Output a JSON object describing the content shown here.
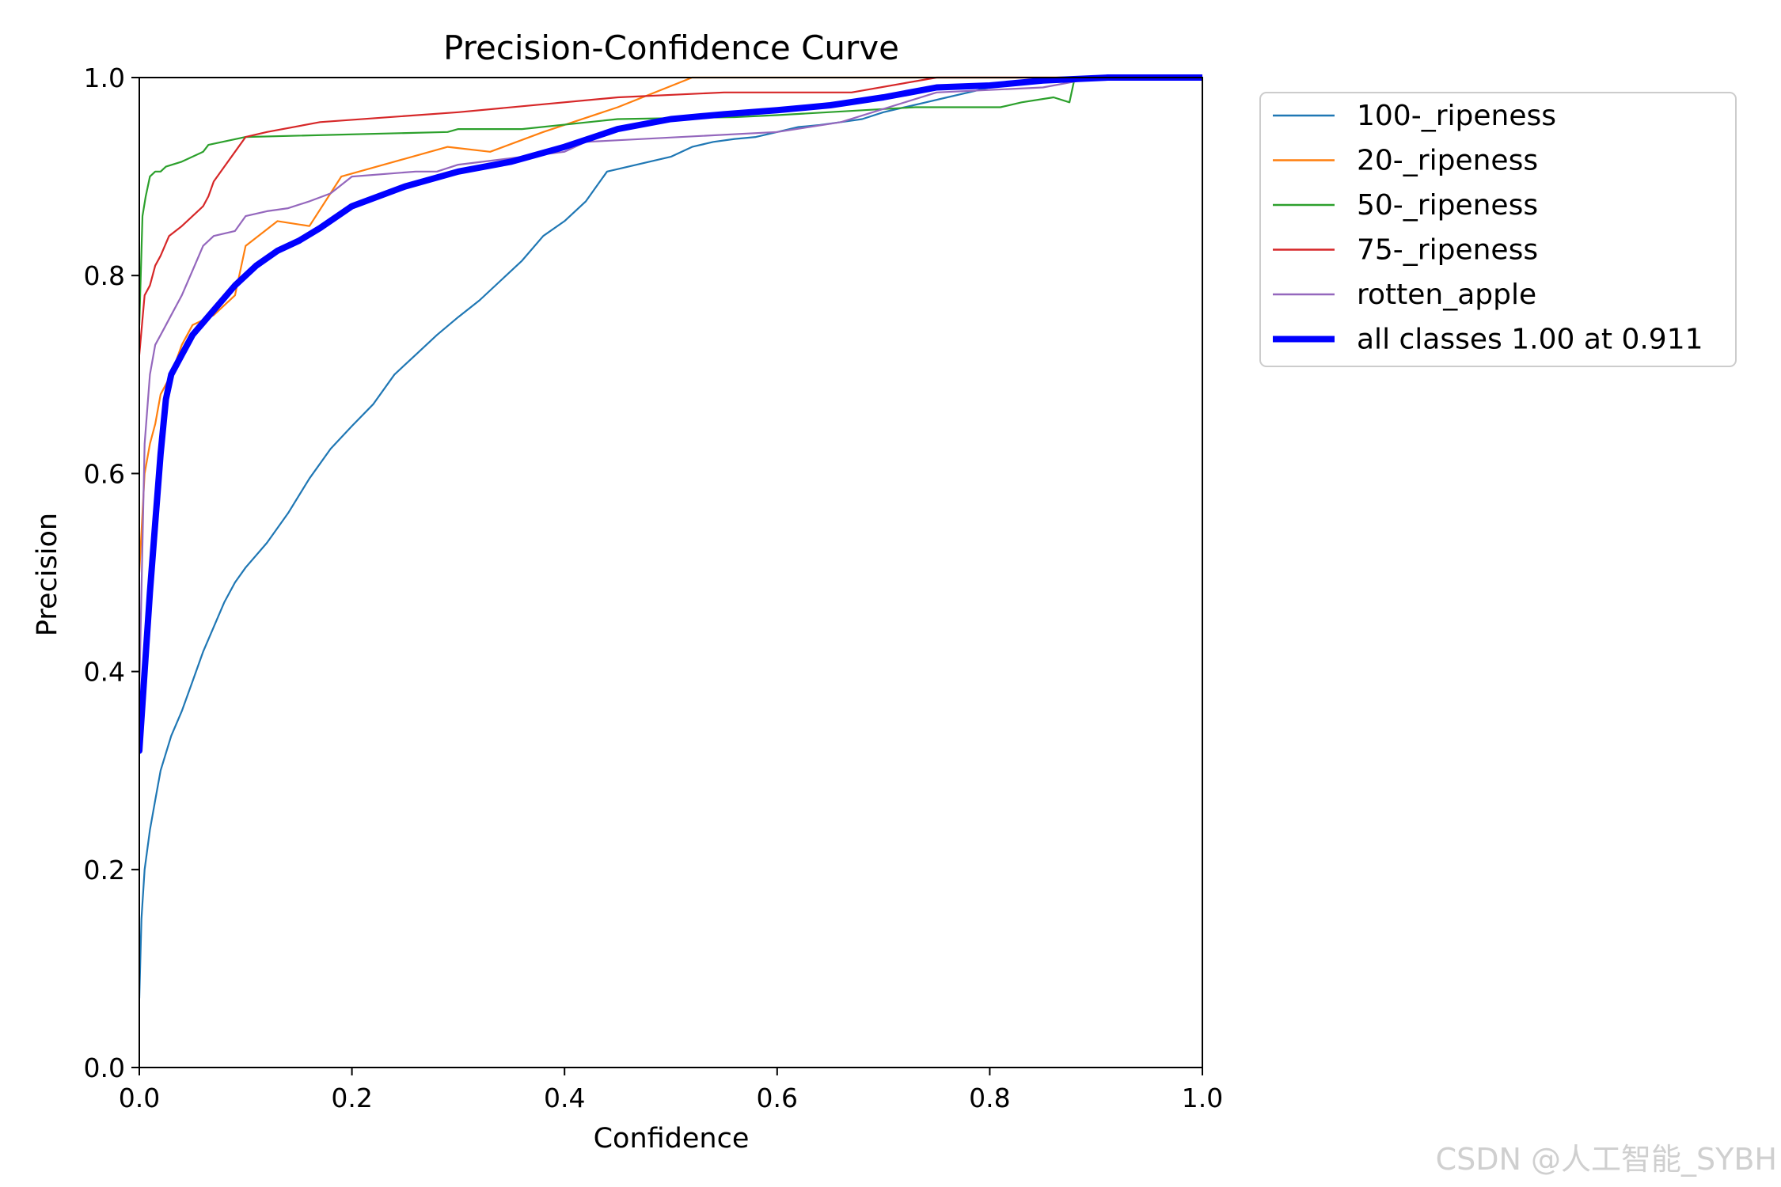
{
  "chart_data": {
    "type": "line",
    "title": "Precision-Confidence Curve",
    "xlabel": "Confidence",
    "ylabel": "Precision",
    "xlim": [
      0,
      1
    ],
    "ylim": [
      0,
      1
    ],
    "xticks": [
      "0.0",
      "0.2",
      "0.4",
      "0.6",
      "0.8",
      "1.0"
    ],
    "yticks": [
      "0.0",
      "0.2",
      "0.4",
      "0.6",
      "0.8",
      "1.0"
    ],
    "grid": false,
    "legend_position": "outside-top-right",
    "series": [
      {
        "name": "100-_ripeness",
        "color": "#1f77b4",
        "width": "thin",
        "points": [
          [
            0,
            0.07
          ],
          [
            0.002,
            0.15
          ],
          [
            0.005,
            0.2
          ],
          [
            0.01,
            0.24
          ],
          [
            0.015,
            0.27
          ],
          [
            0.02,
            0.3
          ],
          [
            0.03,
            0.335
          ],
          [
            0.04,
            0.36
          ],
          [
            0.05,
            0.39
          ],
          [
            0.06,
            0.42
          ],
          [
            0.07,
            0.445
          ],
          [
            0.08,
            0.47
          ],
          [
            0.09,
            0.49
          ],
          [
            0.1,
            0.505
          ],
          [
            0.12,
            0.53
          ],
          [
            0.14,
            0.56
          ],
          [
            0.16,
            0.595
          ],
          [
            0.18,
            0.625
          ],
          [
            0.2,
            0.648
          ],
          [
            0.22,
            0.67
          ],
          [
            0.24,
            0.7
          ],
          [
            0.26,
            0.72
          ],
          [
            0.28,
            0.74
          ],
          [
            0.3,
            0.758
          ],
          [
            0.32,
            0.775
          ],
          [
            0.34,
            0.795
          ],
          [
            0.36,
            0.815
          ],
          [
            0.38,
            0.84
          ],
          [
            0.4,
            0.855
          ],
          [
            0.42,
            0.875
          ],
          [
            0.44,
            0.905
          ],
          [
            0.46,
            0.91
          ],
          [
            0.48,
            0.915
          ],
          [
            0.5,
            0.92
          ],
          [
            0.52,
            0.93
          ],
          [
            0.54,
            0.935
          ],
          [
            0.56,
            0.938
          ],
          [
            0.58,
            0.94
          ],
          [
            0.6,
            0.945
          ],
          [
            0.62,
            0.95
          ],
          [
            0.64,
            0.952
          ],
          [
            0.66,
            0.955
          ],
          [
            0.68,
            0.958
          ],
          [
            0.7,
            0.965
          ],
          [
            0.72,
            0.97
          ],
          [
            0.74,
            0.975
          ],
          [
            0.76,
            0.98
          ],
          [
            0.78,
            0.985
          ],
          [
            0.8,
            0.99
          ],
          [
            0.84,
            0.995
          ],
          [
            0.88,
            1.0
          ],
          [
            1.0,
            1.0
          ]
        ]
      },
      {
        "name": "20-_ripeness",
        "color": "#ff7f0e",
        "width": "thin",
        "points": [
          [
            0,
            0.5
          ],
          [
            0.005,
            0.6
          ],
          [
            0.01,
            0.63
          ],
          [
            0.015,
            0.65
          ],
          [
            0.02,
            0.68
          ],
          [
            0.03,
            0.7
          ],
          [
            0.04,
            0.73
          ],
          [
            0.05,
            0.75
          ],
          [
            0.07,
            0.76
          ],
          [
            0.09,
            0.78
          ],
          [
            0.1,
            0.83
          ],
          [
            0.13,
            0.855
          ],
          [
            0.16,
            0.85
          ],
          [
            0.19,
            0.9
          ],
          [
            0.24,
            0.915
          ],
          [
            0.29,
            0.93
          ],
          [
            0.33,
            0.925
          ],
          [
            0.38,
            0.945
          ],
          [
            0.45,
            0.97
          ],
          [
            0.52,
            1.0
          ],
          [
            1.0,
            1.0
          ]
        ]
      },
      {
        "name": "50-_ripeness",
        "color": "#2ca02c",
        "width": "thin",
        "points": [
          [
            0,
            0.75
          ],
          [
            0.003,
            0.86
          ],
          [
            0.006,
            0.88
          ],
          [
            0.01,
            0.9
          ],
          [
            0.015,
            0.905
          ],
          [
            0.02,
            0.905
          ],
          [
            0.025,
            0.91
          ],
          [
            0.04,
            0.915
          ],
          [
            0.06,
            0.925
          ],
          [
            0.065,
            0.932
          ],
          [
            0.1,
            0.94
          ],
          [
            0.29,
            0.945
          ],
          [
            0.3,
            0.948
          ],
          [
            0.36,
            0.948
          ],
          [
            0.45,
            0.958
          ],
          [
            0.56,
            0.96
          ],
          [
            0.6,
            0.962
          ],
          [
            0.73,
            0.97
          ],
          [
            0.81,
            0.97
          ],
          [
            0.83,
            0.975
          ],
          [
            0.86,
            0.98
          ],
          [
            0.875,
            0.975
          ],
          [
            0.88,
            1.0
          ],
          [
            1.0,
            1.0
          ]
        ]
      },
      {
        "name": "75-_ripeness",
        "color": "#d62728",
        "width": "thin",
        "points": [
          [
            0,
            0.72
          ],
          [
            0.005,
            0.78
          ],
          [
            0.01,
            0.79
          ],
          [
            0.015,
            0.81
          ],
          [
            0.02,
            0.82
          ],
          [
            0.028,
            0.84
          ],
          [
            0.04,
            0.85
          ],
          [
            0.06,
            0.87
          ],
          [
            0.065,
            0.88
          ],
          [
            0.07,
            0.895
          ],
          [
            0.08,
            0.91
          ],
          [
            0.09,
            0.925
          ],
          [
            0.1,
            0.94
          ],
          [
            0.12,
            0.945
          ],
          [
            0.17,
            0.955
          ],
          [
            0.3,
            0.965
          ],
          [
            0.45,
            0.98
          ],
          [
            0.55,
            0.985
          ],
          [
            0.67,
            0.985
          ],
          [
            0.75,
            1.0
          ],
          [
            1.0,
            1.0
          ]
        ]
      },
      {
        "name": "rotten_apple",
        "color": "#9467bd",
        "width": "thin",
        "points": [
          [
            0,
            0.38
          ],
          [
            0.005,
            0.63
          ],
          [
            0.01,
            0.7
          ],
          [
            0.015,
            0.73
          ],
          [
            0.02,
            0.74
          ],
          [
            0.025,
            0.75
          ],
          [
            0.03,
            0.76
          ],
          [
            0.04,
            0.78
          ],
          [
            0.05,
            0.805
          ],
          [
            0.06,
            0.83
          ],
          [
            0.07,
            0.84
          ],
          [
            0.09,
            0.845
          ],
          [
            0.1,
            0.86
          ],
          [
            0.12,
            0.865
          ],
          [
            0.14,
            0.868
          ],
          [
            0.16,
            0.875
          ],
          [
            0.18,
            0.883
          ],
          [
            0.2,
            0.9
          ],
          [
            0.26,
            0.905
          ],
          [
            0.28,
            0.905
          ],
          [
            0.3,
            0.912
          ],
          [
            0.4,
            0.925
          ],
          [
            0.42,
            0.935
          ],
          [
            0.6,
            0.945
          ],
          [
            0.66,
            0.955
          ],
          [
            0.75,
            0.985
          ],
          [
            0.85,
            0.99
          ],
          [
            0.9,
            1.0
          ],
          [
            1.0,
            1.0
          ]
        ]
      },
      {
        "name": "all classes 1.00 at 0.911",
        "color": "#0000ff",
        "width": "thick",
        "points": [
          [
            0,
            0.32
          ],
          [
            0.005,
            0.4
          ],
          [
            0.01,
            0.48
          ],
          [
            0.015,
            0.55
          ],
          [
            0.02,
            0.62
          ],
          [
            0.025,
            0.675
          ],
          [
            0.03,
            0.7
          ],
          [
            0.04,
            0.72
          ],
          [
            0.05,
            0.74
          ],
          [
            0.07,
            0.765
          ],
          [
            0.09,
            0.79
          ],
          [
            0.11,
            0.81
          ],
          [
            0.13,
            0.825
          ],
          [
            0.15,
            0.835
          ],
          [
            0.17,
            0.848
          ],
          [
            0.2,
            0.87
          ],
          [
            0.25,
            0.89
          ],
          [
            0.3,
            0.905
          ],
          [
            0.35,
            0.915
          ],
          [
            0.4,
            0.93
          ],
          [
            0.45,
            0.948
          ],
          [
            0.5,
            0.958
          ],
          [
            0.55,
            0.963
          ],
          [
            0.6,
            0.967
          ],
          [
            0.65,
            0.972
          ],
          [
            0.7,
            0.98
          ],
          [
            0.75,
            0.99
          ],
          [
            0.8,
            0.992
          ],
          [
            0.85,
            0.997
          ],
          [
            0.911,
            1.0
          ],
          [
            1.0,
            1.0
          ]
        ]
      }
    ]
  },
  "watermark": "CSDN @人工智能_SYBH"
}
